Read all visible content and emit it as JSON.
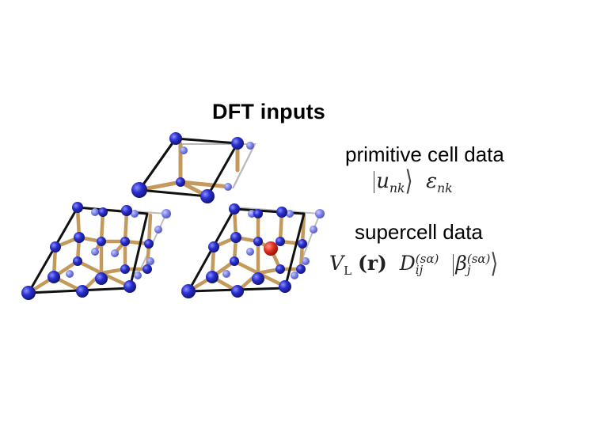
{
  "title": "DFT inputs",
  "primitive": {
    "label": "primitive cell data",
    "u_symbol": "u",
    "u_sub": "nk",
    "eps_symbol": "ε",
    "eps_sub": "nk"
  },
  "supercell": {
    "label": "supercell data",
    "v_symbol": "V",
    "v_sub": "L",
    "v_arg": "(r)",
    "d_symbol": "D",
    "d_sub": "ij",
    "d_sup": "(sα)",
    "beta_symbol": "β",
    "beta_sub": "j",
    "beta_sup": "(sα)"
  },
  "colors": {
    "atom": "#2a2fd0",
    "atom_light": "#7f86e8",
    "bond": "#c49a5c",
    "defect": "#e03020",
    "cell_edge": "#111111"
  }
}
